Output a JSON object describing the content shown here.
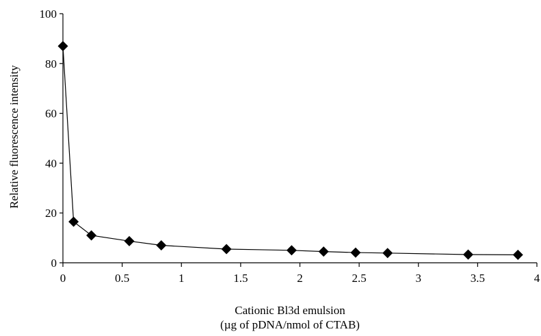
{
  "chart_data": {
    "type": "line",
    "title": "",
    "xlabel_line1": "Cationic Bl3d emulsion",
    "xlabel_line2": "(µg of pDNA/nmol of CTAB)",
    "ylabel": "Relative fluorescence intensity",
    "xlim": [
      0,
      4
    ],
    "ylim": [
      0,
      100
    ],
    "x_ticks": [
      "0",
      "0.5",
      "1",
      "1.5",
      "2",
      "2.5",
      "3",
      "3.5",
      "4"
    ],
    "y_ticks": [
      "0",
      "20",
      "40",
      "60",
      "80",
      "100"
    ],
    "grid": false,
    "marker": "diamond",
    "series": [
      {
        "x": [
          0.0,
          0.09,
          0.24,
          0.56,
          0.83,
          1.38,
          1.93,
          2.2,
          2.47,
          2.74,
          3.42,
          3.84
        ],
        "y": [
          87,
          16.5,
          11,
          8.7,
          7,
          5.5,
          5,
          4.5,
          4.1,
          3.9,
          3.3,
          3.2
        ]
      }
    ],
    "colors": {
      "line": "#000000",
      "marker": "#000000",
      "axis": "#000000"
    }
  }
}
